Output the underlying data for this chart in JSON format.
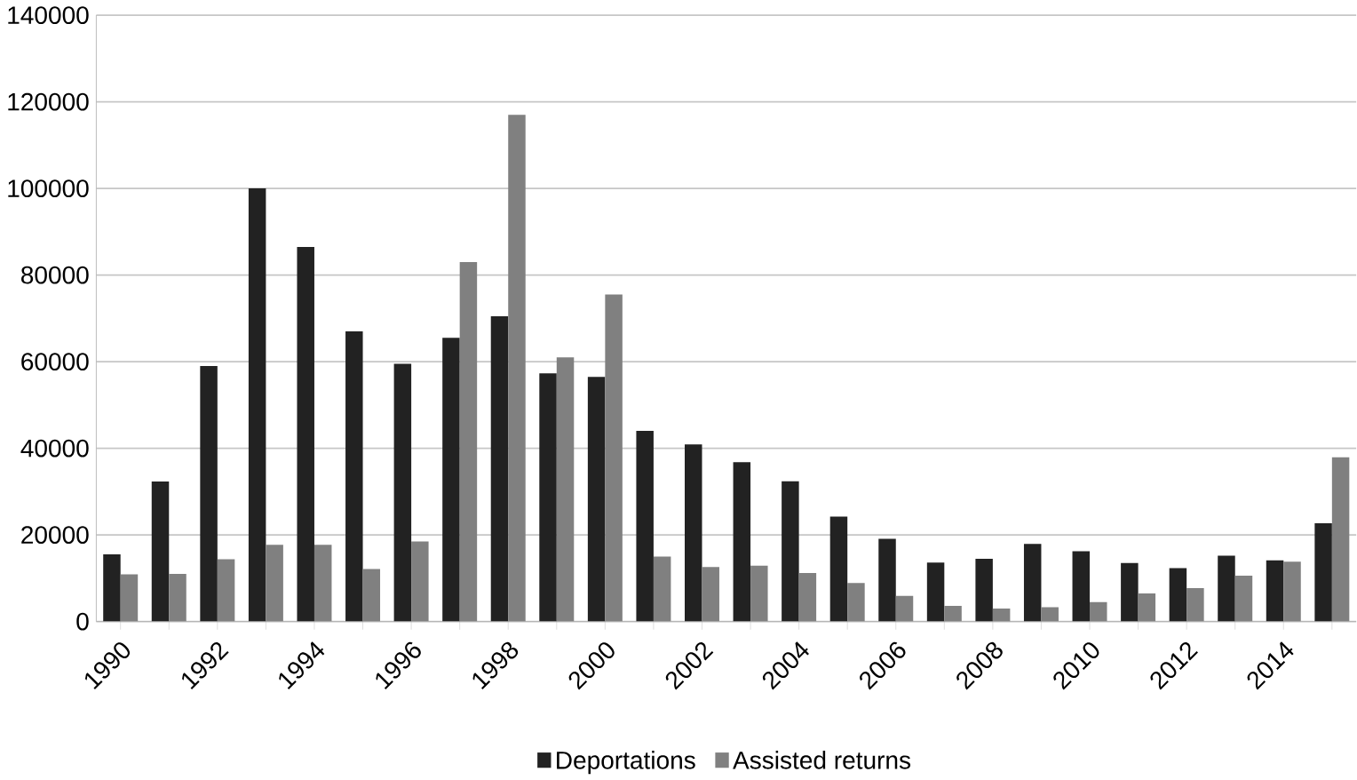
{
  "chart_data": {
    "type": "bar",
    "categories": [
      "1990",
      null,
      "1992",
      null,
      "1994",
      null,
      "1996",
      null,
      "1998",
      null,
      "2000",
      null,
      "2002",
      null,
      "2004",
      null,
      "2006",
      null,
      "2008",
      null,
      "2010",
      null,
      "2012",
      null,
      "2014",
      null
    ],
    "series": [
      {
        "name": "Deportations",
        "color": "#222222",
        "values": [
          15500,
          32300,
          59000,
          100000,
          86500,
          67000,
          59500,
          65500,
          70500,
          57300,
          56500,
          44000,
          40900,
          36800,
          32400,
          24200,
          19100,
          13600,
          14500,
          17900,
          16200,
          13500,
          12300,
          15200,
          14100,
          22700
        ]
      },
      {
        "name": "Assisted returns",
        "color": "#808080",
        "values": [
          10900,
          11000,
          14400,
          17700,
          17700,
          12100,
          18500,
          83000,
          117000,
          61000,
          75500,
          15000,
          12600,
          12900,
          11200,
          8900,
          5900,
          3600,
          3000,
          3300,
          4500,
          6500,
          7700,
          10600,
          13800,
          37900
        ]
      }
    ],
    "ylim": [
      0,
      140000
    ],
    "yticks": [
      0,
      20000,
      40000,
      60000,
      80000,
      100000,
      120000,
      140000
    ],
    "grid": "y",
    "legend": "bottom"
  }
}
